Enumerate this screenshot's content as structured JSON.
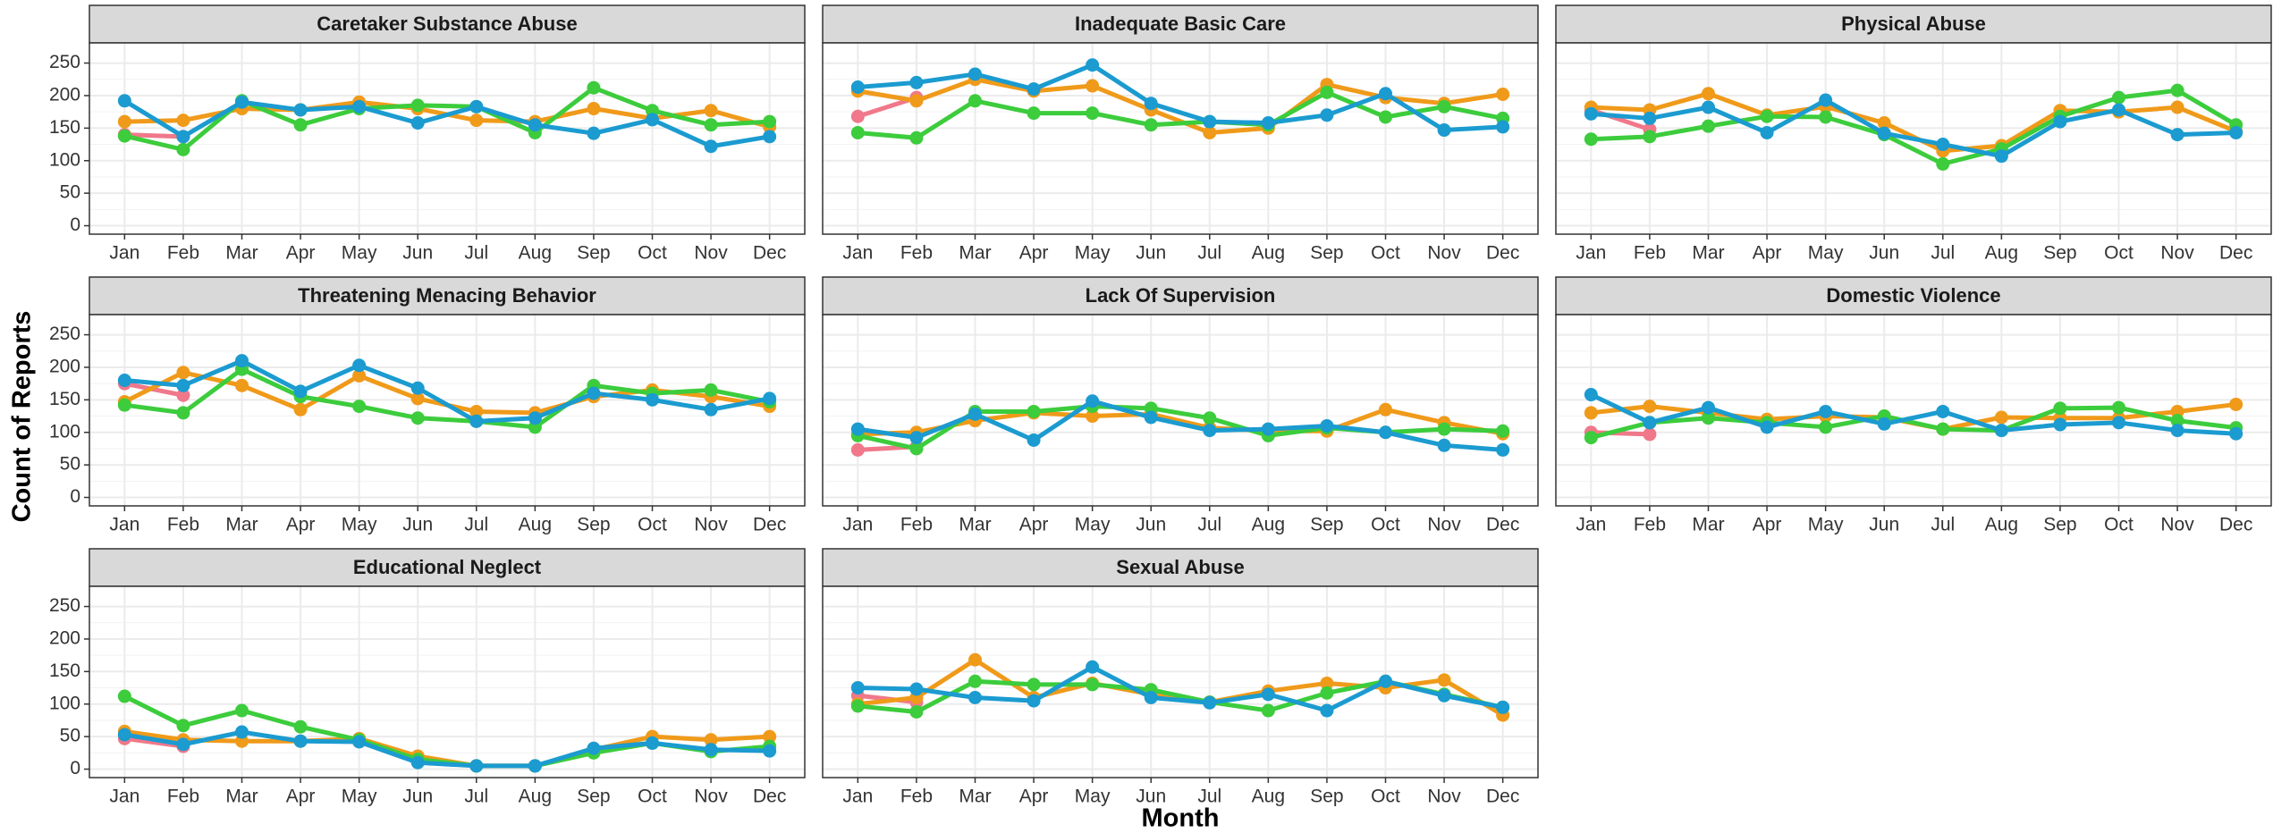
{
  "chart_data": {
    "type": "line",
    "x_label": "Month",
    "y_label": "Count of Reports",
    "categories": [
      "Jan",
      "Feb",
      "Mar",
      "Apr",
      "May",
      "Jun",
      "Jul",
      "Aug",
      "Sep",
      "Oct",
      "Nov",
      "Dec"
    ],
    "ylim": [
      -13,
      281
    ],
    "yticks": [
      0,
      50,
      100,
      150,
      200,
      250
    ],
    "grid": true,
    "panels": [
      {
        "title": "Caretaker Substance Abuse",
        "series": [
          {
            "color": "#f0788a",
            "values": [
              140,
              137,
              null,
              null,
              null,
              null,
              null,
              null,
              null,
              null,
              null,
              null
            ]
          },
          {
            "color": "#f09a1a",
            "values": [
              160,
              162,
              180,
              178,
              190,
              180,
              162,
              160,
              180,
              165,
              177,
              152
            ]
          },
          {
            "color": "#3ccc3c",
            "values": [
              138,
              117,
              192,
              155,
              180,
              185,
              183,
              143,
              212,
              177,
              155,
              160
            ]
          },
          {
            "color": "#1b9bd0",
            "values": [
              192,
              137,
              190,
              178,
              183,
              158,
              183,
              155,
              142,
              163,
              122,
              137
            ]
          }
        ]
      },
      {
        "title": "Inadequate Basic Care",
        "series": [
          {
            "color": "#f0788a",
            "values": [
              168,
              197,
              null,
              null,
              null,
              null,
              null,
              null,
              null,
              null,
              null,
              null
            ]
          },
          {
            "color": "#f09a1a",
            "values": [
              207,
              192,
              225,
              207,
              215,
              178,
              143,
              150,
              217,
              197,
              188,
              202
            ]
          },
          {
            "color": "#3ccc3c",
            "values": [
              143,
              135,
              192,
              173,
              173,
              155,
              160,
              155,
              205,
              167,
              183,
              165
            ]
          },
          {
            "color": "#1b9bd0",
            "values": [
              213,
              220,
              233,
              210,
              247,
              188,
              160,
              158,
              170,
              203,
              147,
              152
            ]
          }
        ]
      },
      {
        "title": "Physical Abuse",
        "series": [
          {
            "color": "#f0788a",
            "values": [
              178,
              148,
              null,
              null,
              null,
              null,
              null,
              null,
              null,
              null,
              null,
              null
            ]
          },
          {
            "color": "#f09a1a",
            "values": [
              182,
              178,
              203,
              170,
              183,
              158,
              115,
              123,
              177,
              175,
              182,
              145
            ]
          },
          {
            "color": "#3ccc3c",
            "values": [
              133,
              137,
              153,
              168,
              167,
              140,
              95,
              118,
              168,
              197,
              208,
              155
            ]
          },
          {
            "color": "#1b9bd0",
            "values": [
              172,
              165,
              182,
              143,
              193,
              142,
              125,
              107,
              160,
              178,
              140,
              143
            ]
          }
        ]
      },
      {
        "title": "Threatening Menacing Behavior",
        "series": [
          {
            "color": "#f0788a",
            "values": [
              175,
              157,
              null,
              null,
              null,
              null,
              null,
              null,
              null,
              null,
              null,
              null
            ]
          },
          {
            "color": "#f09a1a",
            "values": [
              147,
              192,
              172,
              135,
              187,
              152,
              132,
              130,
              155,
              165,
              155,
              140
            ]
          },
          {
            "color": "#3ccc3c",
            "values": [
              142,
              130,
              197,
              155,
              140,
              122,
              117,
              108,
              172,
              160,
              165,
              147
            ]
          },
          {
            "color": "#1b9bd0",
            "values": [
              180,
              172,
              210,
              163,
              203,
              168,
              117,
              122,
              160,
              150,
              135,
              152
            ]
          }
        ]
      },
      {
        "title": "Lack Of Supervision",
        "series": [
          {
            "color": "#f0788a",
            "values": [
              73,
              78,
              null,
              null,
              null,
              null,
              null,
              null,
              null,
              null,
              null,
              null
            ]
          },
          {
            "color": "#f09a1a",
            "values": [
              97,
              100,
              118,
              130,
              125,
              128,
              107,
              102,
              102,
              135,
              115,
              98
            ]
          },
          {
            "color": "#3ccc3c",
            "values": [
              95,
              75,
              132,
              132,
              140,
              137,
              122,
              95,
              107,
              100,
              105,
              102
            ]
          },
          {
            "color": "#1b9bd0",
            "values": [
              105,
              92,
              128,
              88,
              148,
              123,
              103,
              105,
              110,
              100,
              80,
              73
            ]
          }
        ]
      },
      {
        "title": "Domestic Violence",
        "series": [
          {
            "color": "#f0788a",
            "values": [
              100,
              97,
              null,
              null,
              null,
              null,
              null,
              null,
              null,
              null,
              null,
              null
            ]
          },
          {
            "color": "#f09a1a",
            "values": [
              130,
              140,
              130,
              120,
              125,
              123,
              105,
              123,
              122,
              122,
              132,
              143
            ]
          },
          {
            "color": "#3ccc3c",
            "values": [
              92,
              115,
              122,
              115,
              108,
              125,
              105,
              103,
              137,
              138,
              118,
              107
            ]
          },
          {
            "color": "#1b9bd0",
            "values": [
              158,
              115,
              138,
              108,
              132,
              113,
              132,
              103,
              112,
              115,
              103,
              98
            ]
          }
        ]
      },
      {
        "title": "Educational Neglect",
        "series": [
          {
            "color": "#f0788a",
            "values": [
              47,
              35,
              null,
              null,
              null,
              null,
              null,
              null,
              null,
              null,
              null,
              null
            ]
          },
          {
            "color": "#f09a1a",
            "values": [
              58,
              45,
              43,
              43,
              47,
              20,
              5,
              5,
              30,
              50,
              45,
              50
            ]
          },
          {
            "color": "#3ccc3c",
            "values": [
              112,
              67,
              90,
              65,
              45,
              15,
              5,
              5,
              25,
              40,
              27,
              35
            ]
          },
          {
            "color": "#1b9bd0",
            "values": [
              53,
              38,
              57,
              43,
              42,
              10,
              5,
              5,
              32,
              40,
              30,
              28
            ]
          }
        ]
      },
      {
        "title": "Sexual Abuse",
        "series": [
          {
            "color": "#f0788a",
            "values": [
              113,
              103,
              null,
              null,
              null,
              null,
              null,
              null,
              null,
              null,
              null,
              null
            ]
          },
          {
            "color": "#f09a1a",
            "values": [
              100,
              110,
              168,
              110,
              132,
              115,
              103,
              120,
              132,
              125,
              137,
              83
            ]
          },
          {
            "color": "#3ccc3c",
            "values": [
              97,
              88,
              135,
              130,
              130,
              122,
              103,
              90,
              117,
              135,
              115,
              95
            ]
          },
          {
            "color": "#1b9bd0",
            "values": [
              125,
              123,
              110,
              105,
              157,
              110,
              102,
              115,
              90,
              135,
              113,
              95
            ]
          }
        ]
      }
    ]
  }
}
